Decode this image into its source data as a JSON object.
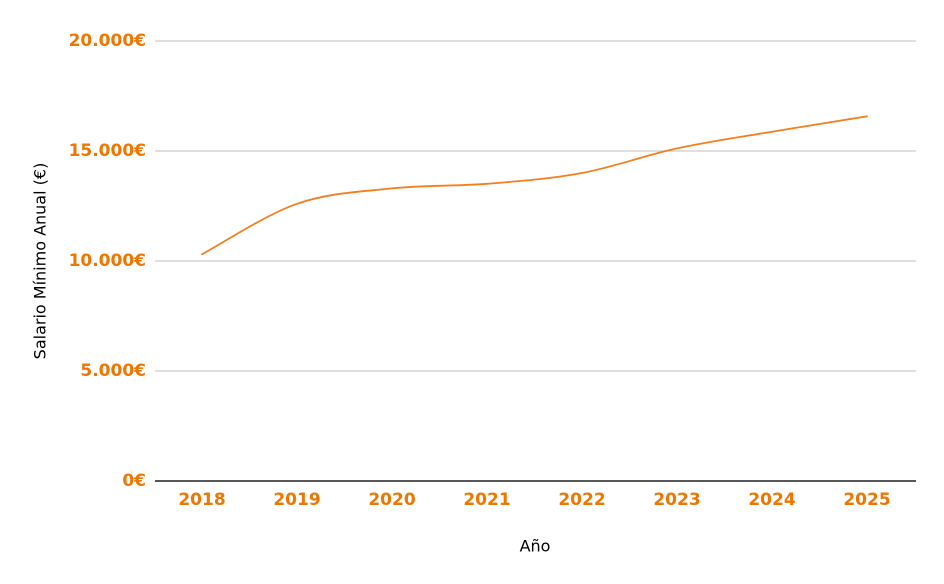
{
  "page": {
    "background": "#ffffff"
  },
  "chart_data": {
    "type": "line",
    "x": [
      2018,
      2019,
      2020,
      2021,
      2022,
      2023,
      2024,
      2025
    ],
    "series": [
      {
        "name": "Salario Mínimo Anual",
        "values": [
          10302.6,
          12600,
          13300,
          13510,
          14000,
          15120,
          15876,
          16576
        ]
      }
    ],
    "xlabel": "Año",
    "ylabel": "Salario Mínimo Anual (€)",
    "ylim": [
      0,
      20000
    ],
    "yticks": [
      {
        "value": 0,
        "label": "0€"
      },
      {
        "value": 5000,
        "label": "5.000€"
      },
      {
        "value": 10000,
        "label": "10.000€"
      },
      {
        "value": 15000,
        "label": "15.000€"
      },
      {
        "value": 20000,
        "label": "20.000€"
      }
    ],
    "xtick_labels": [
      "2018",
      "2019",
      "2020",
      "2021",
      "2022",
      "2023",
      "2024",
      "2025"
    ],
    "grid": "horizontal",
    "legend": "none",
    "smooth": true,
    "colors": {
      "line": "#f57e1f",
      "tick_label": "#ee7601",
      "gridline": "#cccccc",
      "axis_line": "#212121",
      "axis_title": "#000000"
    }
  }
}
